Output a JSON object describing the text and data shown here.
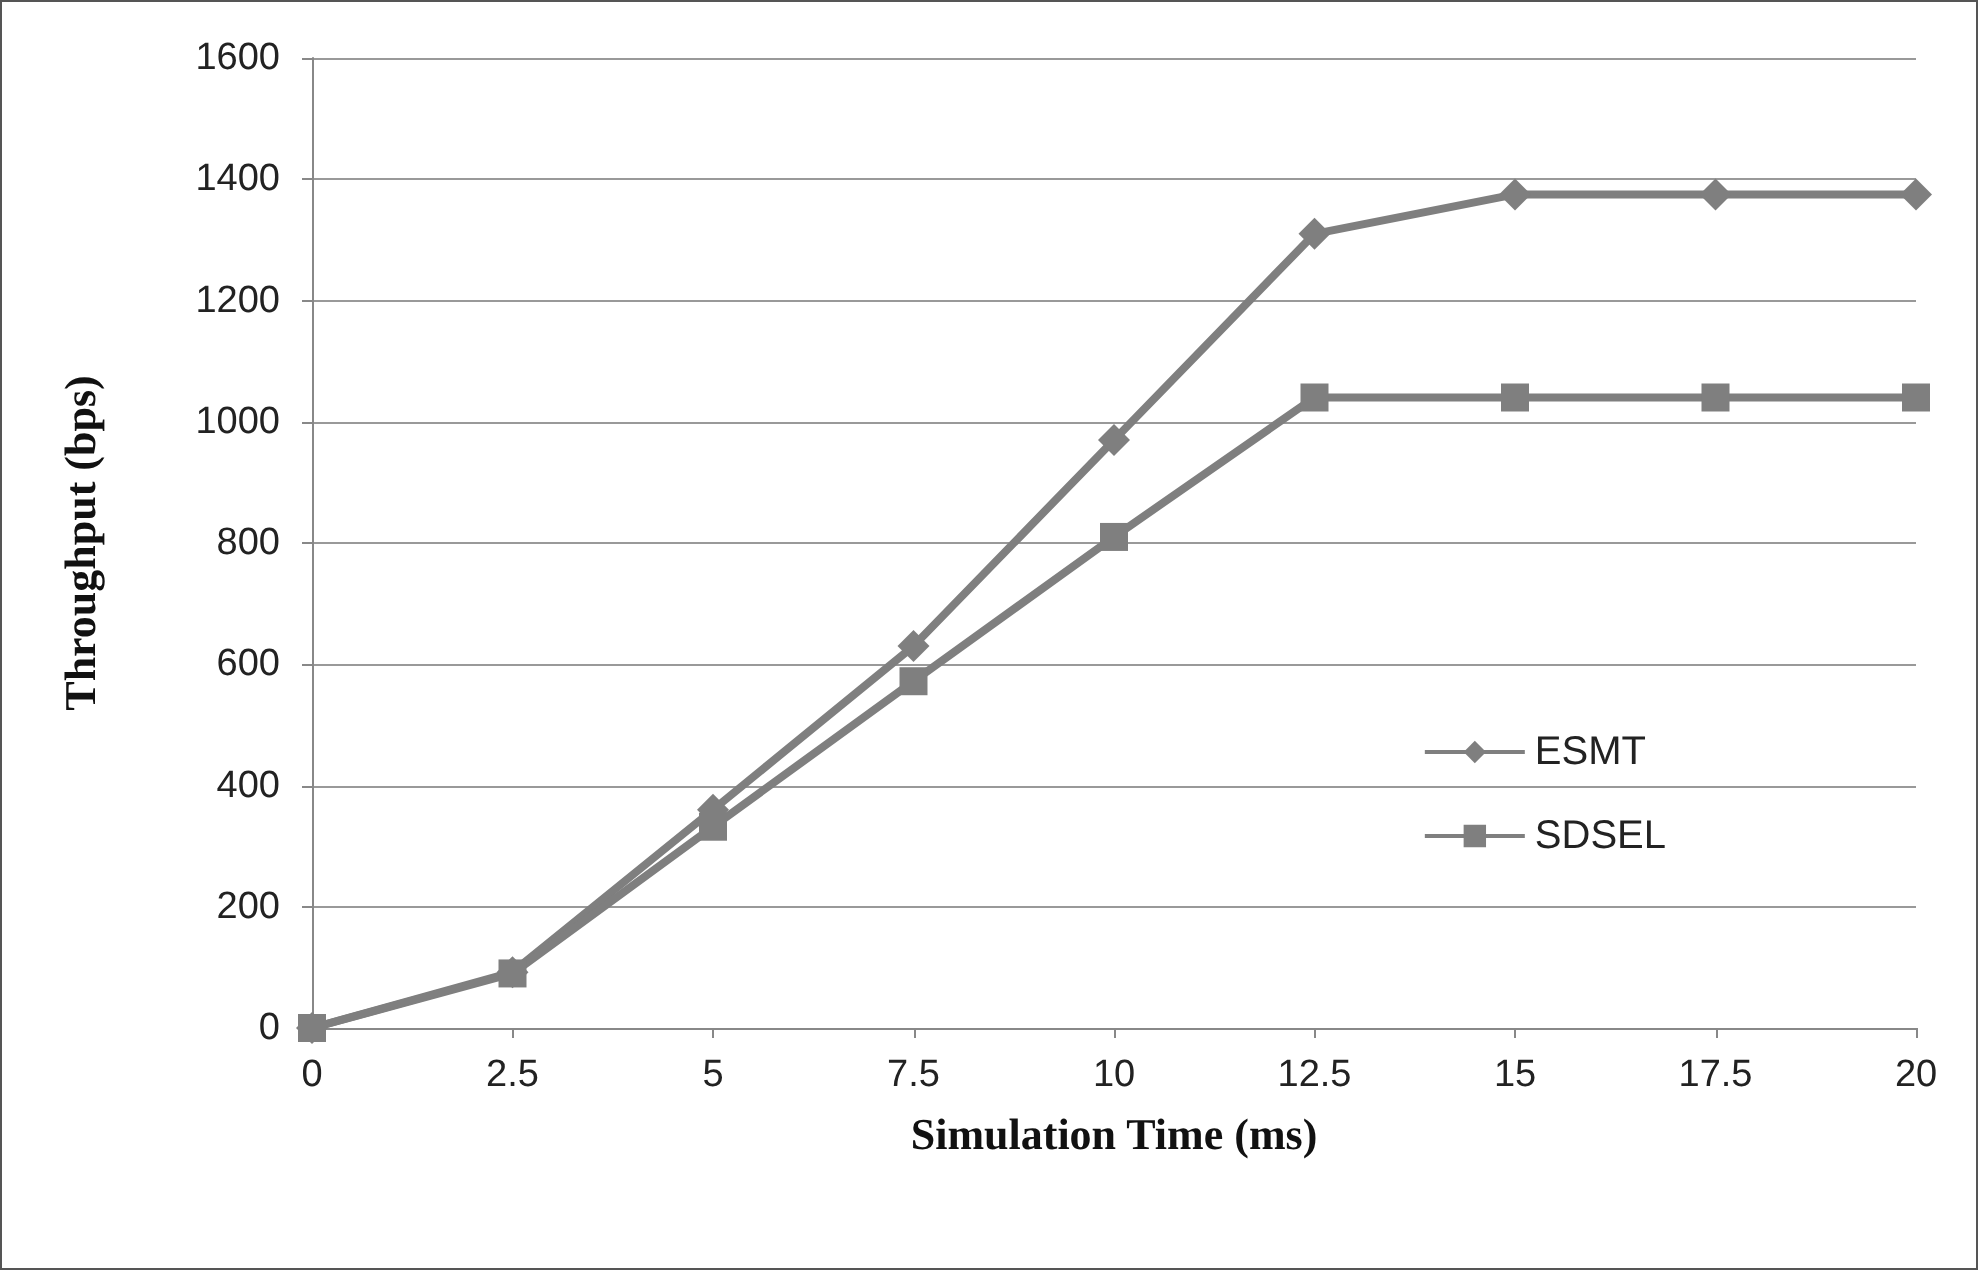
{
  "chart_data": {
    "type": "line",
    "xlabel": "Simulation Time (ms)",
    "ylabel": "Throughput (bps)",
    "x": [
      0,
      2.5,
      5,
      7.5,
      10,
      12.5,
      15,
      17.5,
      20
    ],
    "series": [
      {
        "name": "ESMT",
        "color": "#7f7f7f",
        "marker": "diamond",
        "values": [
          0,
          92,
          360,
          630,
          970,
          1310,
          1375,
          1375,
          1375
        ]
      },
      {
        "name": "SDSEL",
        "color": "#7f7f7f",
        "marker": "square",
        "values": [
          0,
          90,
          332,
          572,
          810,
          1040,
          1040,
          1040,
          1040
        ]
      }
    ],
    "xlim": [
      0,
      20
    ],
    "xticks": [
      0,
      2.5,
      5,
      7.5,
      10,
      12.5,
      15,
      17.5,
      20
    ],
    "ylim": [
      0,
      1600
    ],
    "yticks": [
      0,
      200,
      400,
      600,
      800,
      1000,
      1200,
      1400,
      1600
    ],
    "grid": "y",
    "legend": "right",
    "line_style": "solid"
  }
}
